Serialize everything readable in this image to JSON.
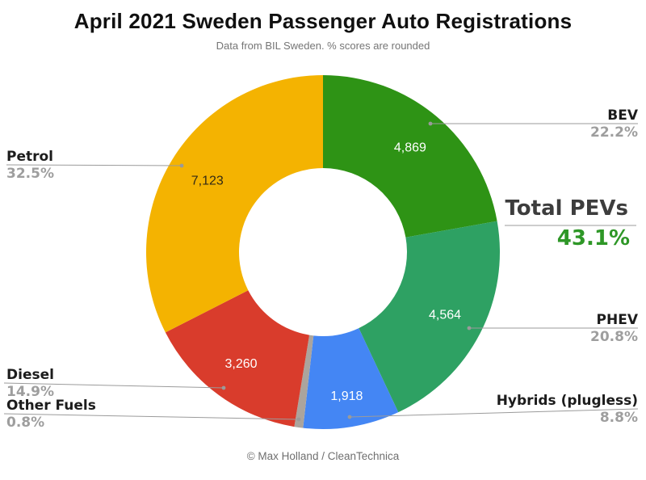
{
  "title": "April 2021 Sweden Passenger Auto Registrations",
  "subtitle": "Data from BIL Sweden. % scores are rounded",
  "footer": "© Max Holland / CleanTechnica",
  "annotation": {
    "label": "Total PEVs",
    "pct_label": "43.1%"
  },
  "chart_data": {
    "type": "pie",
    "donut": true,
    "title": "April 2021 Sweden Passenger Auto Registrations",
    "subtitle": "Data from BIL Sweden. % scores are rounded",
    "start_angle_deg": 0,
    "direction": "clockwise",
    "slices": [
      {
        "label": "BEV",
        "value": 4869,
        "value_label": "4,869",
        "pct": 22.2,
        "pct_label": "22.2%",
        "color": "#2e9315",
        "value_text_color": "#ffffff",
        "side": "right"
      },
      {
        "label": "PHEV",
        "value": 4564,
        "value_label": "4,564",
        "pct": 20.8,
        "pct_label": "20.8%",
        "color": "#2ea163",
        "value_text_color": "#ffffff",
        "side": "right"
      },
      {
        "label": "Hybrids (plugless)",
        "value": 1918,
        "value_label": "1,918",
        "pct": 8.8,
        "pct_label": "8.8%",
        "color": "#4486f4",
        "value_text_color": "#ffffff",
        "side": "right"
      },
      {
        "label": "Other Fuels",
        "value": null,
        "value_label": "",
        "pct": 0.8,
        "pct_label": "0.8%",
        "color": "#aba49d",
        "value_text_color": "#ffffff",
        "side": "left"
      },
      {
        "label": "Diesel",
        "value": 3260,
        "value_label": "3,260",
        "pct": 14.9,
        "pct_label": "14.9%",
        "color": "#d93c2c",
        "value_text_color": "#ffffff",
        "side": "left"
      },
      {
        "label": "Petrol",
        "value": 7123,
        "value_label": "7,123",
        "pct": 32.5,
        "pct_label": "32.5%",
        "color": "#f4b301",
        "value_text_color": "#322a16",
        "side": "left"
      }
    ],
    "annotation": {
      "label": "Total PEVs",
      "pct_label": "43.1%"
    },
    "footer": "© Max Holland / CleanTechnica",
    "line_color": "#9b9b9b"
  }
}
